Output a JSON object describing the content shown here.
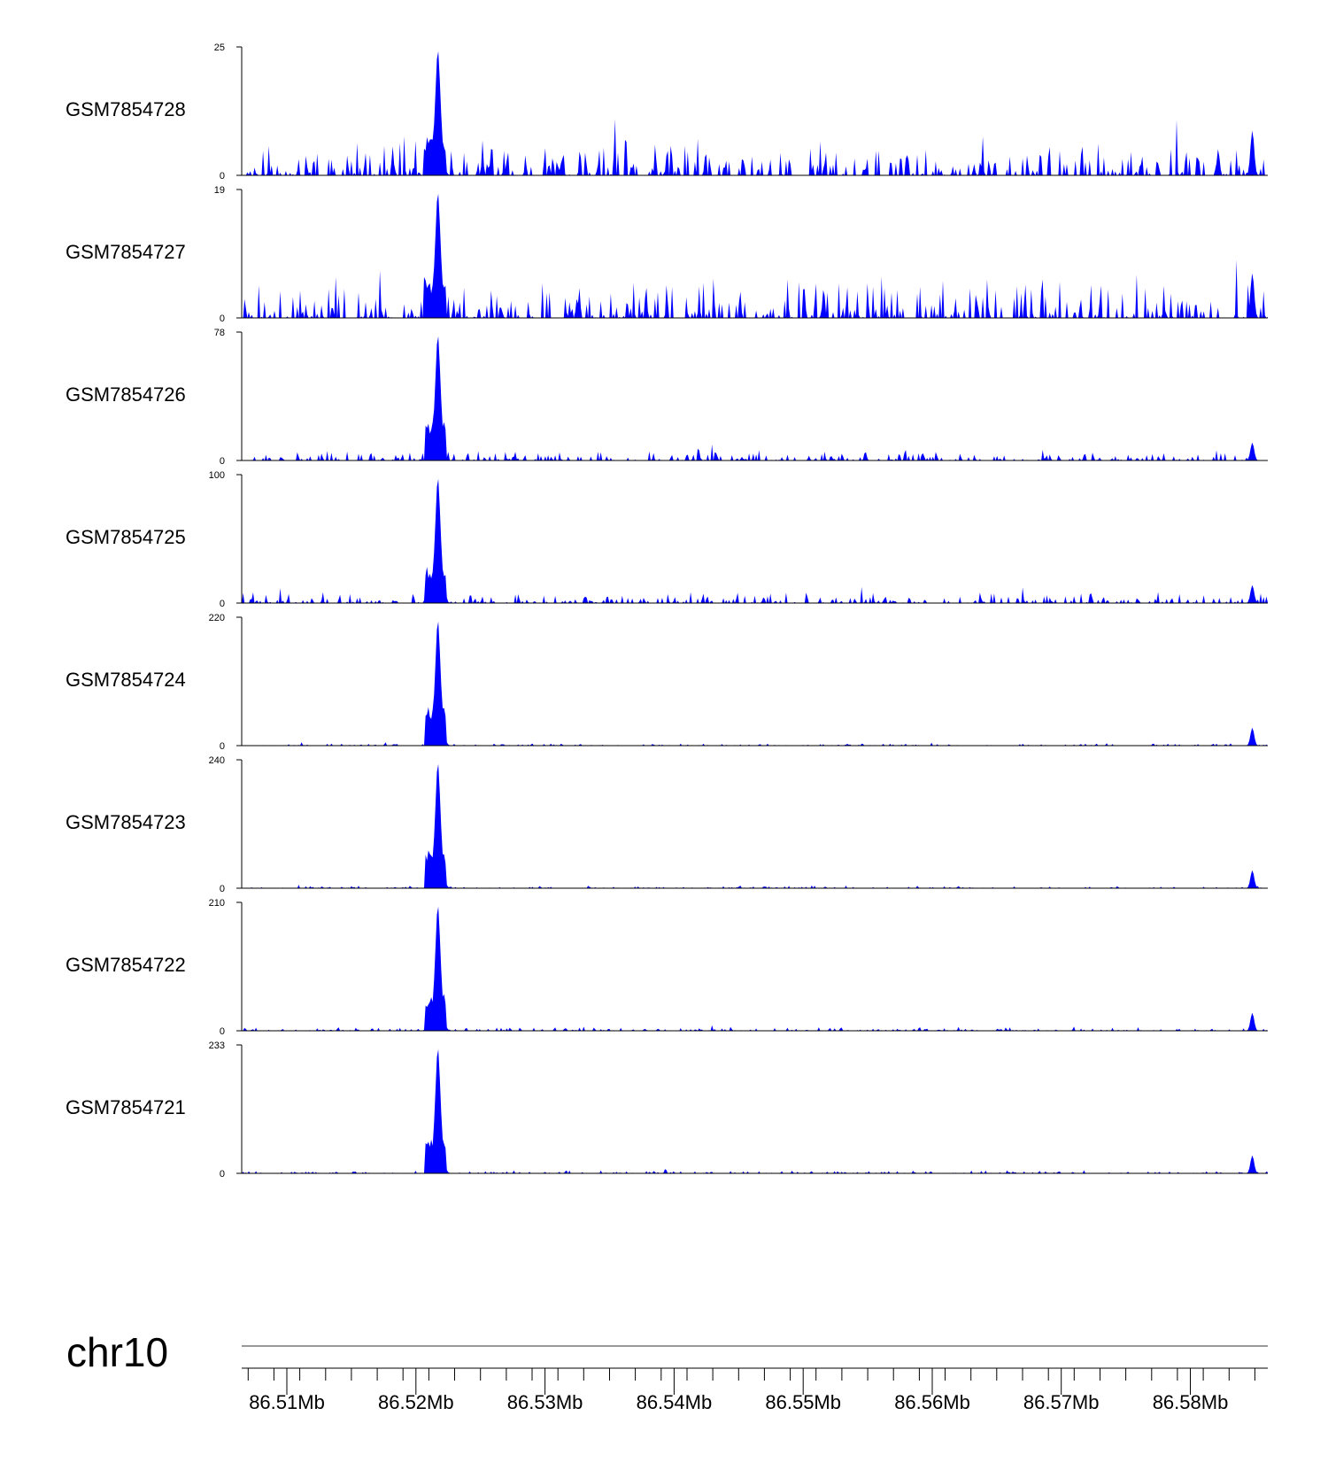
{
  "chart_data": {
    "type": "area",
    "title": "",
    "chromosome": "chr10",
    "color": "#0000ff",
    "axis_color": "#000000",
    "region": {
      "start_mb": 86.5065,
      "end_mb": 86.586
    },
    "peaks_mb": [
      86.5217,
      86.5848
    ],
    "x_ticks": [
      "86.51Mb",
      "86.52Mb",
      "86.53Mb",
      "86.54Mb",
      "86.55Mb",
      "86.56Mb",
      "86.57Mb",
      "86.58Mb"
    ],
    "x_tick_values": [
      86.51,
      86.52,
      86.53,
      86.54,
      86.55,
      86.56,
      86.57,
      86.58
    ],
    "tracks": [
      {
        "name": "GSM7854728",
        "ymin": 0,
        "ymax": 25,
        "peak": 25,
        "baseline_frac": 0.18,
        "seed": 11
      },
      {
        "name": "GSM7854727",
        "ymin": 0,
        "ymax": 19,
        "peak": 19,
        "baseline_frac": 0.22,
        "seed": 23
      },
      {
        "name": "GSM7854726",
        "ymin": 0,
        "ymax": 78,
        "peak": 78,
        "baseline_frac": 0.05,
        "seed": 37
      },
      {
        "name": "GSM7854725",
        "ymin": 0,
        "ymax": 100,
        "peak": 100,
        "baseline_frac": 0.05,
        "seed": 41
      },
      {
        "name": "GSM7854724",
        "ymin": 0,
        "ymax": 220,
        "peak": 220,
        "baseline_frac": 0.012,
        "seed": 53
      },
      {
        "name": "GSM7854723",
        "ymin": 0,
        "ymax": 240,
        "peak": 240,
        "baseline_frac": 0.012,
        "seed": 67
      },
      {
        "name": "GSM7854722",
        "ymin": 0,
        "ymax": 210,
        "peak": 210,
        "baseline_frac": 0.018,
        "seed": 71
      },
      {
        "name": "GSM7854721",
        "ymin": 0,
        "ymax": 233,
        "peak": 233,
        "baseline_frac": 0.014,
        "seed": 83
      }
    ]
  }
}
